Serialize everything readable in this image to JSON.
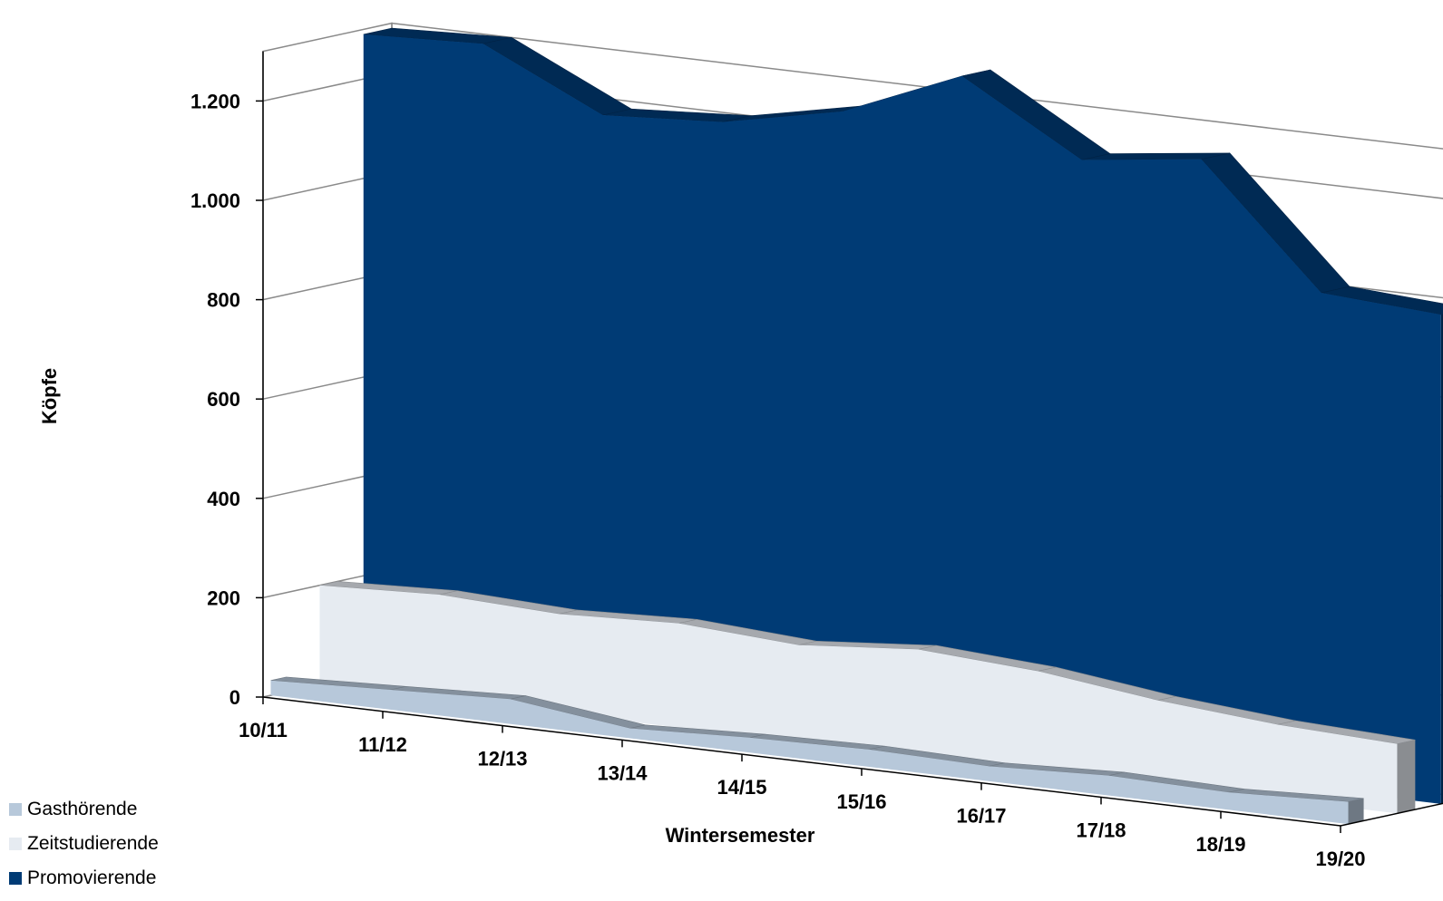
{
  "chart_data": {
    "type": "area",
    "title": "",
    "xlabel": "Wintersemester",
    "ylabel": "Köpfe",
    "categories": [
      "10/11",
      "11/12",
      "12/13",
      "13/14",
      "14/15",
      "15/16",
      "16/17",
      "17/18",
      "18/19",
      "19/20"
    ],
    "ylim": [
      0,
      1300
    ],
    "yticks": [
      0,
      200,
      400,
      600,
      800,
      1000,
      1200
    ],
    "ytick_labels": [
      "0",
      "200",
      "400",
      "600",
      "800",
      "1.000",
      "1.200"
    ],
    "grid": true,
    "three_d": true,
    "legend_position": "bottom-left",
    "series": [
      {
        "name": "Gasthörende",
        "color": "#b7c8da",
        "values": [
          30,
          40,
          50,
          20,
          30,
          35,
          30,
          40,
          35,
          45
        ]
      },
      {
        "name": "Zeitstudierende",
        "color": "#e6ebf1",
        "values": [
          200,
          210,
          200,
          210,
          195,
          215,
          200,
          170,
          150,
          140
        ]
      },
      {
        "name": "Promovierende",
        "color": "#003b75",
        "values": [
          1290,
          1300,
          1185,
          1200,
          1250,
          1350,
          1210,
          1240,
          1000,
          985
        ]
      }
    ]
  }
}
